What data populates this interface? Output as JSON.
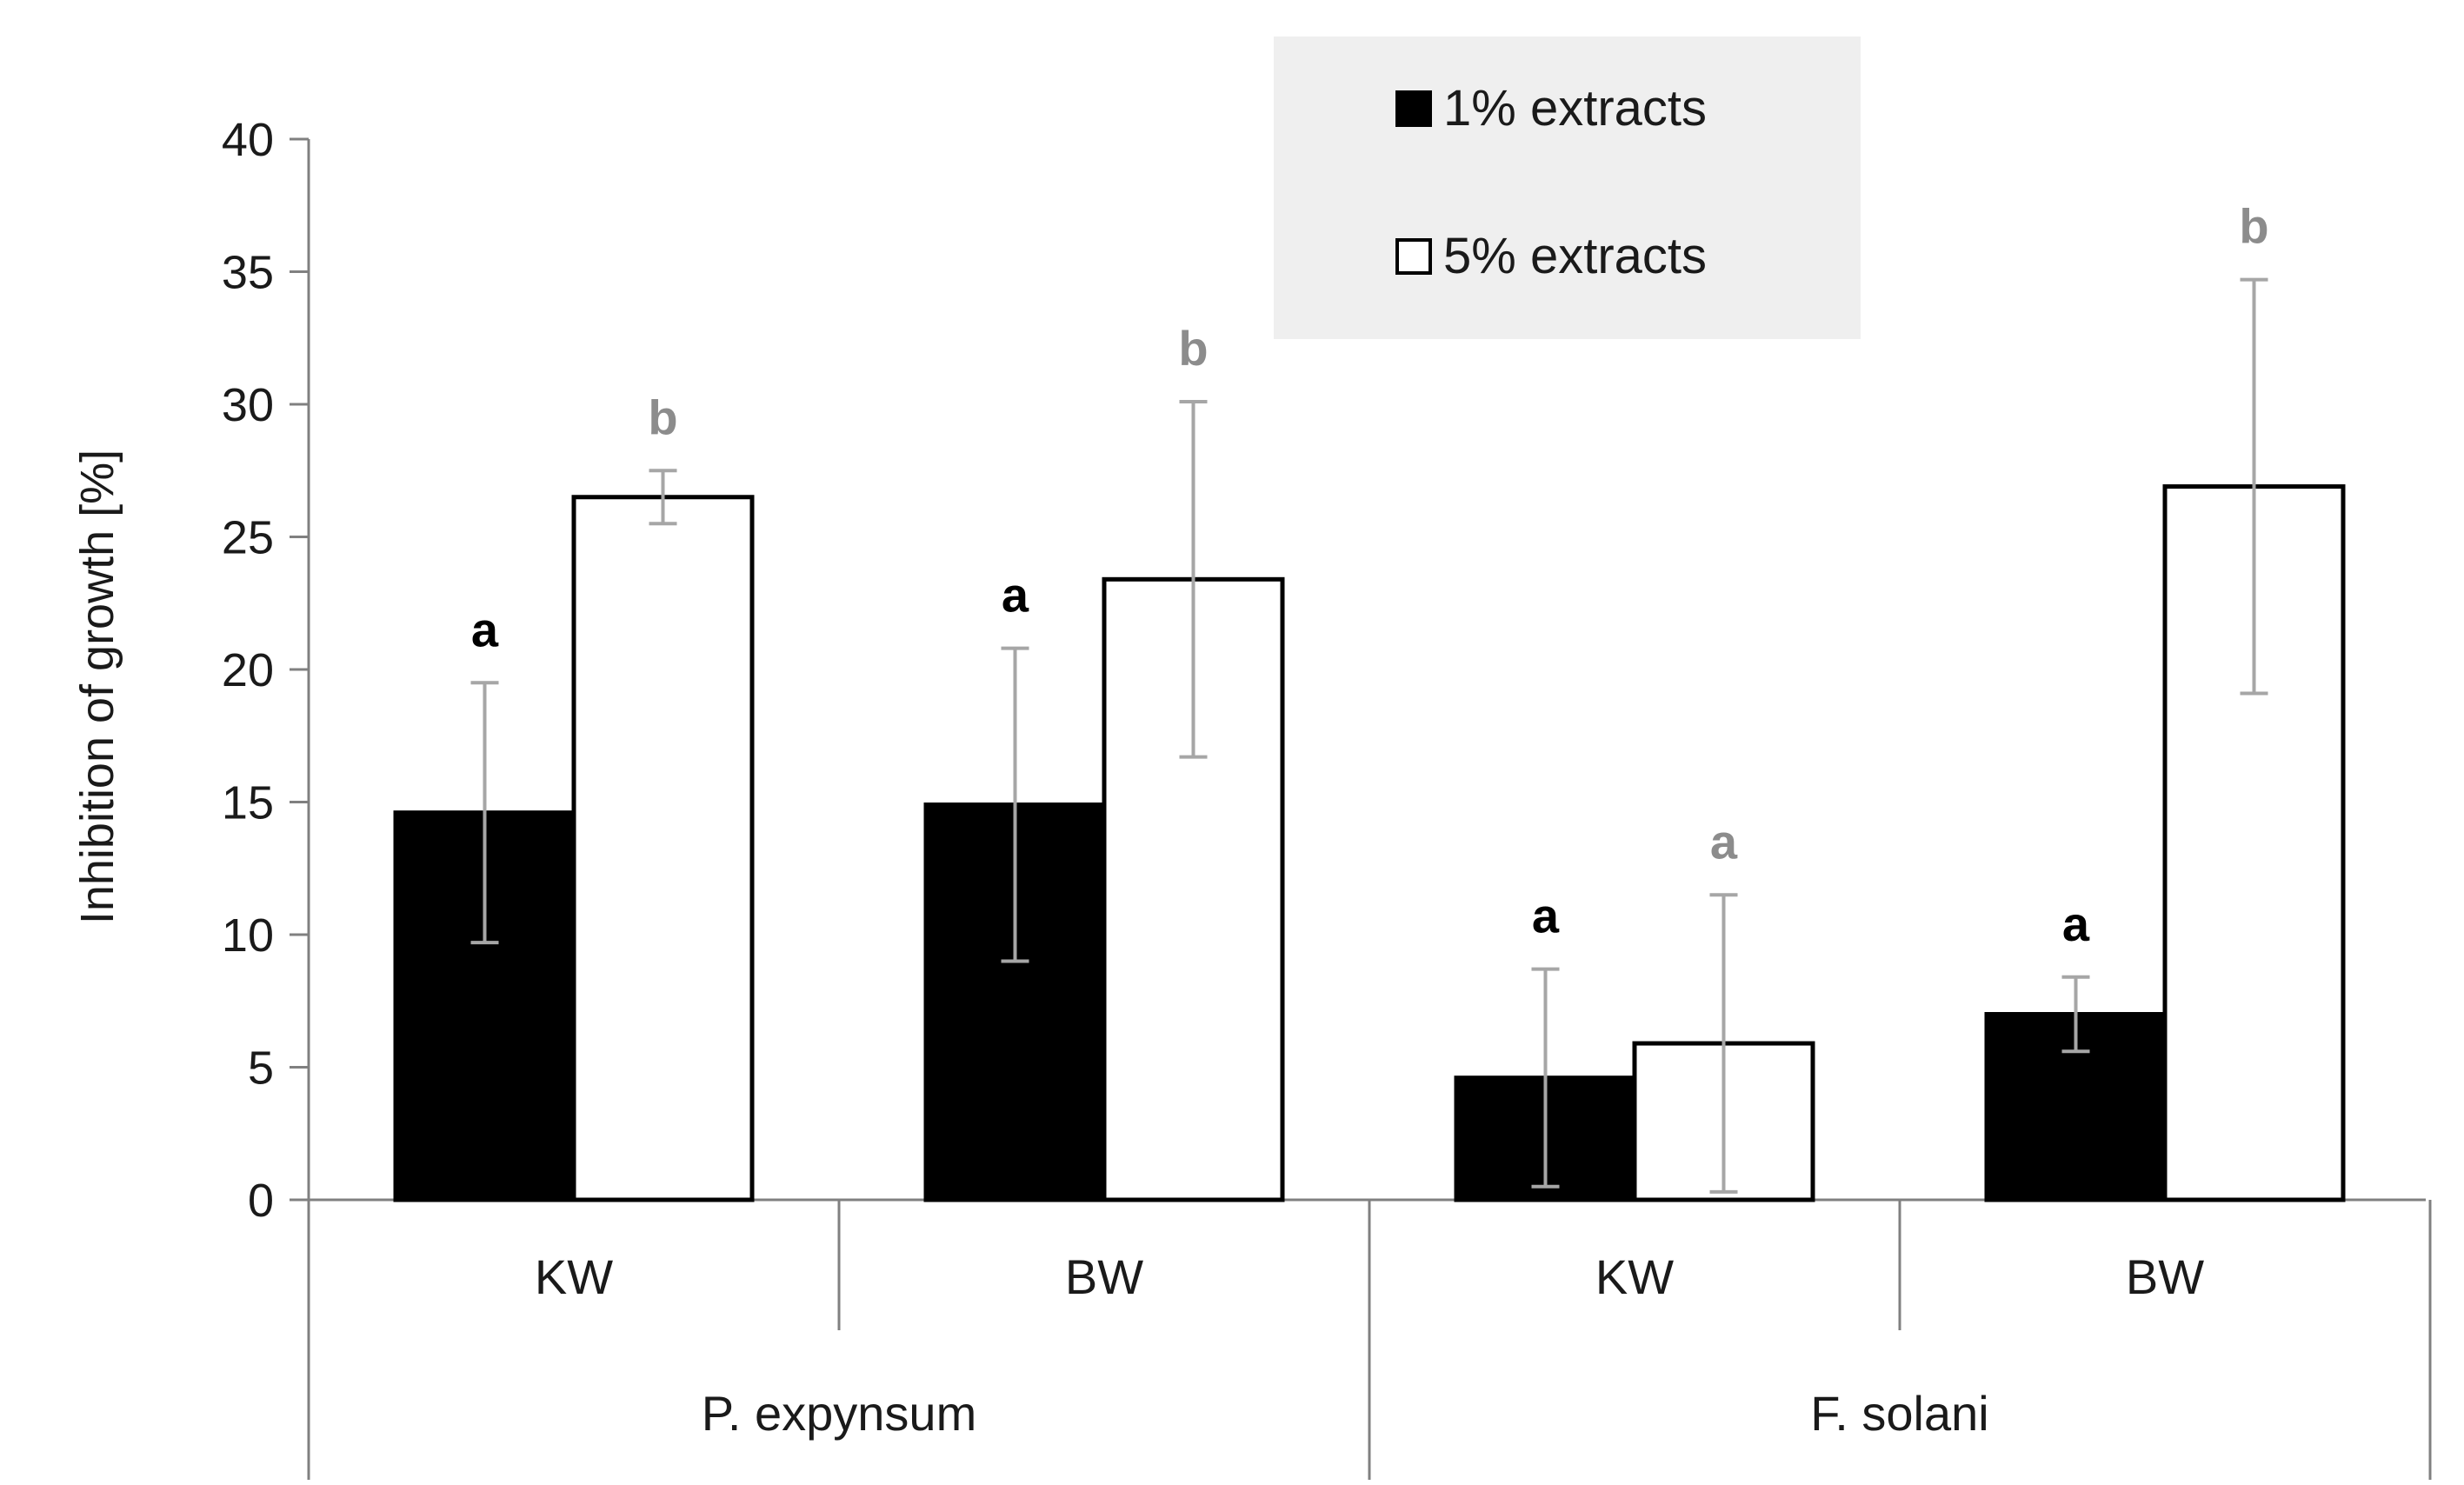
{
  "chart_data": {
    "type": "bar",
    "title": "",
    "xlabel": "",
    "ylabel": "Inhibition of growth [%]",
    "ylim": [
      0,
      40
    ],
    "yticks": [
      0,
      5,
      10,
      15,
      20,
      25,
      30,
      35,
      40
    ],
    "grid": false,
    "legend_position": "top-center",
    "groups": [
      {
        "label": "P. expynsum",
        "categories": [
          "KW",
          "BW"
        ]
      },
      {
        "label": "F. solani",
        "categories": [
          "KW",
          "BW"
        ]
      }
    ],
    "categories": [
      "KW",
      "BW",
      "KW",
      "BW"
    ],
    "series": [
      {
        "name": "1% extracts",
        "color": "#000000",
        "fill": "#000000",
        "values": [
          14.6,
          14.9,
          4.6,
          7.0
        ],
        "error": [
          4.9,
          5.9,
          4.1,
          1.4
        ],
        "significance": [
          "a",
          "a",
          "a",
          "a"
        ],
        "significance_color": "#000000"
      },
      {
        "name": "5% extracts",
        "color": "#000000",
        "fill": "#ffffff",
        "values": [
          26.5,
          23.4,
          5.9,
          26.9
        ],
        "error": [
          1.0,
          6.7,
          5.6,
          7.8
        ],
        "significance": [
          "b",
          "b",
          "a",
          "b"
        ],
        "significance_color": "#8c8c8c"
      }
    ],
    "error_bar_color": "#a6a6a6",
    "legend_background": "#efefef"
  }
}
